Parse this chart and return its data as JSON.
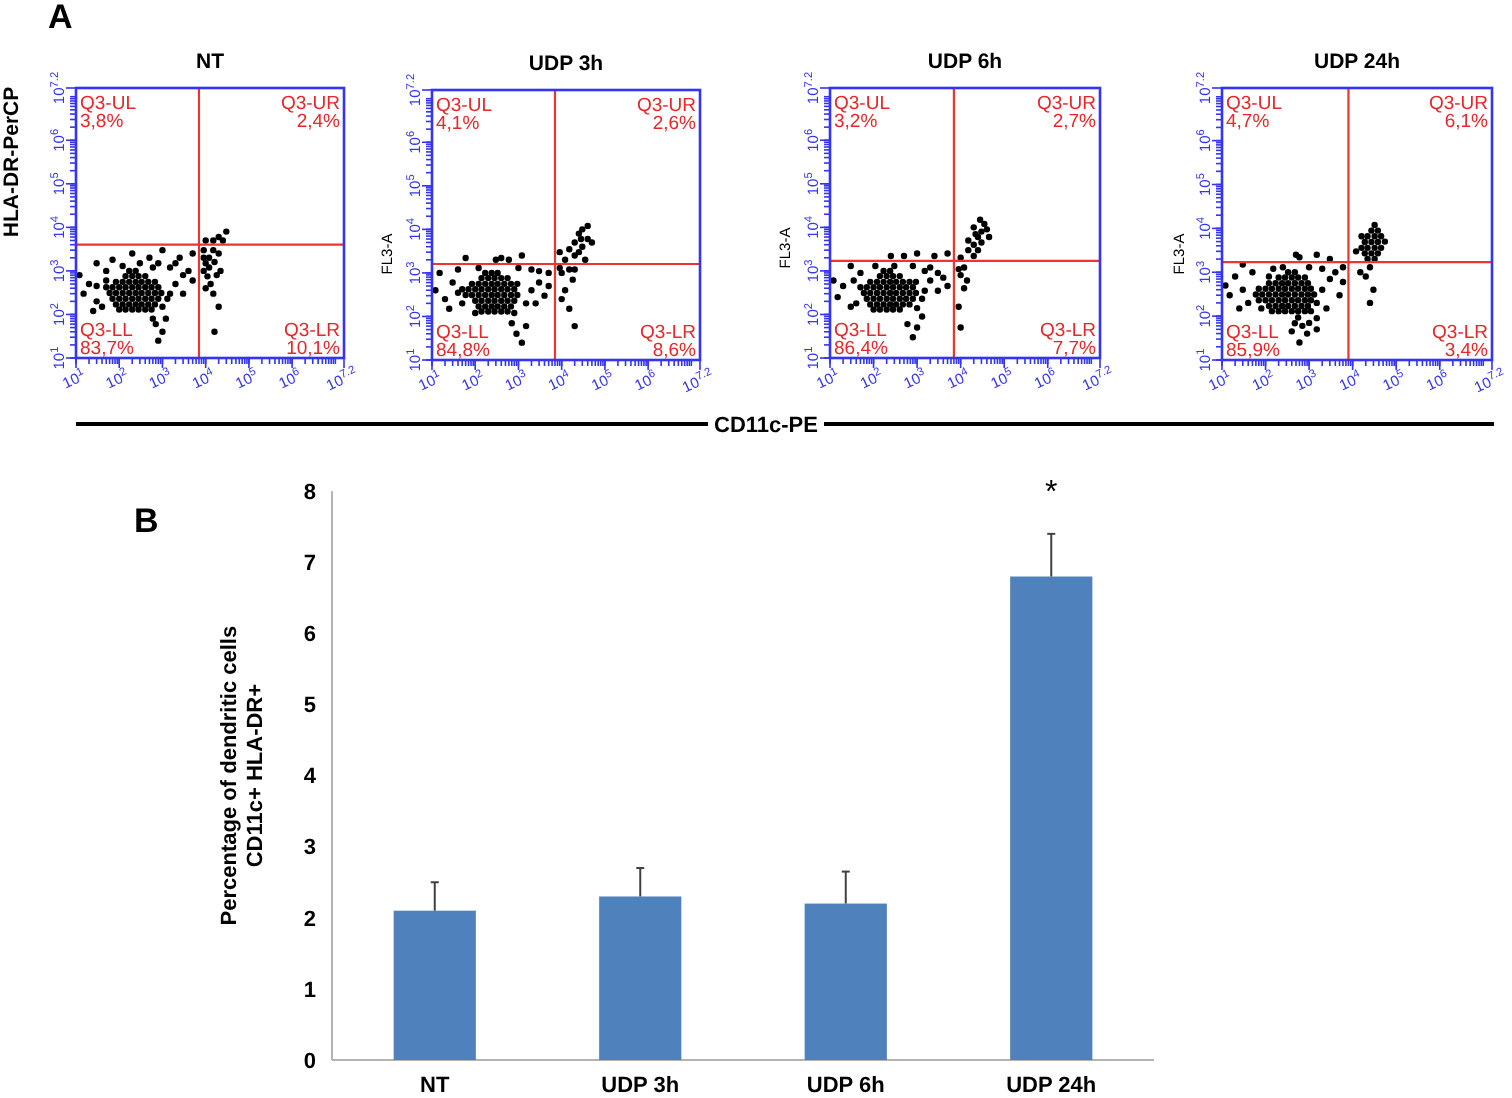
{
  "chart_data": [
    {
      "type": "scatter",
      "title": "NT",
      "ylabel": "HLA-DR-PerCP",
      "log": "xy",
      "xlim": [
        10,
        15848932
      ],
      "ylim": [
        10,
        15848932
      ],
      "xticks": [
        {
          "value": 10,
          "label": "10$^{1}$"
        },
        {
          "value": 100,
          "label": "10$^{2}$"
        },
        {
          "value": 1000,
          "label": "10$^{3}$"
        },
        {
          "value": 10000,
          "label": "10$^{4}$"
        },
        {
          "value": 100000,
          "label": "10$^{5}$"
        },
        {
          "value": 1000000,
          "label": "10$^{6}$"
        },
        {
          "value": 15848932,
          "label": "10$^{7.2}$"
        }
      ],
      "yticks": [
        {
          "value": 10,
          "label": "10$^{1}$"
        },
        {
          "value": 100,
          "label": "10$^{2}$"
        },
        {
          "value": 1000,
          "label": "10$^{3}$"
        },
        {
          "value": 10000,
          "label": "10$^{4}$"
        },
        {
          "value": 100000,
          "label": "10$^{5}$"
        },
        {
          "value": 1000000,
          "label": "10$^{6}$"
        },
        {
          "value": 15848932,
          "label": "10$^{7.2}$"
        }
      ],
      "color": "#000000",
      "x": [
        100,
        140,
        200,
        280,
        400,
        560,
        84,
        120,
        170,
        240,
        330,
        470,
        670,
        70,
        100,
        140,
        200,
        280,
        400,
        560,
        800,
        60,
        84,
        120,
        170,
        240,
        330,
        470,
        670,
        940,
        50,
        70,
        100,
        140,
        200,
        280,
        400,
        560,
        800,
        84,
        120,
        170,
        240,
        330,
        470,
        670,
        140,
        200,
        280,
        400,
        170,
        240,
        12,
        15,
        20,
        30,
        40,
        50,
        30,
        25,
        700,
        1000,
        800,
        600,
        1200,
        1000,
        1300,
        1500,
        2000,
        3000,
        800,
        1500,
        2500,
        500,
        1000,
        300,
        2000,
        4000,
        5000,
        120,
        3000,
        600,
        200,
        5000,
        70,
        50,
        30,
        9000,
        10000,
        12000,
        15000,
        11000,
        9000,
        20000,
        12000,
        15000,
        20000,
        25000,
        10000,
        9000,
        30000,
        13000,
        15000,
        20000,
        10000,
        18000,
        16000,
        16000,
        22000
      ],
      "values": [
        130,
        130,
        130,
        130,
        130,
        130,
        170,
        170,
        170,
        170,
        170,
        170,
        170,
        230,
        230,
        230,
        230,
        230,
        230,
        230,
        230,
        310,
        310,
        310,
        310,
        310,
        310,
        310,
        310,
        310,
        420,
        420,
        420,
        420,
        420,
        420,
        420,
        420,
        420,
        560,
        560,
        560,
        560,
        560,
        560,
        560,
        760,
        760,
        760,
        760,
        1000,
        1000,
        800,
        300,
        500,
        1500,
        150,
        1000,
        200,
        120,
        60,
        40,
        25,
        80,
        80,
        150,
        230,
        300,
        500,
        800,
        1500,
        1200,
        2000,
        2000,
        3000,
        1500,
        1500,
        1000,
        2500,
        1300,
        300,
        1200,
        2500,
        600,
        1800,
        600,
        450,
        1000,
        1500,
        2000,
        3000,
        750,
        2000,
        2500,
        1200,
        5000,
        6000,
        5000,
        5000,
        3000,
        8000,
        500,
        300,
        150,
        400,
        800,
        40,
        1600,
        1000
      ],
      "ref_lines": [
        {
          "axis": "x",
          "value": 7000,
          "color": "#ee3333"
        },
        {
          "axis": "y",
          "value": 4000,
          "color": "#ee3333"
        }
      ],
      "annotations": [
        "A",
        "Q3-UL\n3,8%",
        "Q3-UR\n2,4%",
        "Q3-LL\n83,7%",
        "Q3-LR\n10,1%"
      ]
    },
    {
      "type": "scatter",
      "title": "UDP 3h",
      "ylabel": "FL3-A",
      "log": "xy",
      "xlim": [
        10,
        15848932
      ],
      "ylim": [
        10,
        15848932
      ],
      "xticks": [
        {
          "value": 10,
          "label": "10$^{1}$"
        },
        {
          "value": 100,
          "label": "10$^{2}$"
        },
        {
          "value": 1000,
          "label": "10$^{3}$"
        },
        {
          "value": 10000,
          "label": "10$^{4}$"
        },
        {
          "value": 100000,
          "label": "10$^{5}$"
        },
        {
          "value": 1000000,
          "label": "10$^{6}$"
        },
        {
          "value": 15848932,
          "label": "10$^{7.2}$"
        }
      ],
      "yticks": [
        {
          "value": 10,
          "label": "10$^{1}$"
        },
        {
          "value": 100,
          "label": "10$^{2}$"
        },
        {
          "value": 1000,
          "label": "10$^{3}$"
        },
        {
          "value": 10000,
          "label": "10$^{4}$"
        },
        {
          "value": 100000,
          "label": "10$^{5}$"
        },
        {
          "value": 1000000,
          "label": "10$^{6}$"
        },
        {
          "value": 15848932,
          "label": "10$^{7.2}$"
        }
      ],
      "color": "#000000",
      "x": [
        140,
        200,
        280,
        400,
        560,
        120,
        170,
        240,
        330,
        470,
        670,
        100,
        140,
        200,
        280,
        400,
        560,
        800,
        60,
        84,
        120,
        170,
        240,
        330,
        470,
        670,
        940,
        50,
        70,
        100,
        140,
        200,
        280,
        400,
        560,
        800,
        84,
        120,
        170,
        240,
        330,
        470,
        670,
        940,
        140,
        200,
        280,
        400,
        560,
        170,
        240,
        330,
        12,
        15,
        20,
        30,
        40,
        50,
        25,
        60,
        700,
        900,
        1200,
        1500,
        800,
        1500,
        2000,
        3000,
        4000,
        1000,
        2000,
        600,
        1200,
        300,
        5000,
        3000,
        120,
        2500,
        5000,
        100,
        40,
        400,
        10000,
        15000,
        20000,
        25000,
        30000,
        20000,
        25000,
        30000,
        40000,
        15000,
        12000,
        35000,
        20000,
        40000,
        18000,
        12000,
        15000,
        20000,
        10000,
        9000,
        50000,
        28000,
        9000
      ],
      "values": [
        130,
        130,
        130,
        130,
        130,
        170,
        170,
        170,
        170,
        170,
        170,
        230,
        230,
        230,
        230,
        230,
        230,
        230,
        310,
        310,
        310,
        310,
        310,
        310,
        310,
        310,
        310,
        420,
        420,
        420,
        420,
        420,
        420,
        420,
        420,
        420,
        560,
        560,
        560,
        560,
        560,
        560,
        560,
        560,
        760,
        760,
        760,
        760,
        760,
        1000,
        1000,
        1000,
        400,
        1000,
        250,
        600,
        1200,
        200,
        150,
        2200,
        70,
        40,
        25,
        60,
        120,
        200,
        400,
        600,
        300,
        1300,
        1200,
        2000,
        2500,
        2000,
        1000,
        1100,
        1300,
        200,
        500,
        120,
        350,
        2200,
        1000,
        1200,
        2500,
        3000,
        4000,
        5000,
        8000,
        10000,
        6000,
        3500,
        2000,
        2000,
        1200,
        12000,
        700,
        400,
        150,
        60,
        250,
        1300,
        5000,
        6000,
        3000
      ],
      "ref_lines": [
        {
          "axis": "x",
          "value": 7000,
          "color": "#ee3333"
        },
        {
          "axis": "y",
          "value": 1600,
          "color": "#ee3333"
        }
      ],
      "annotations": [
        "Q3-UL\n4,1%",
        "Q3-UR\n2,6%",
        "Q3-LL\n84,8%",
        "Q3-LR\n8,6%"
      ]
    },
    {
      "type": "scatter",
      "title": "UDP 6h",
      "ylabel": "FL3-A",
      "log": "xy",
      "xlim": [
        10,
        15848932
      ],
      "ylim": [
        10,
        15848932
      ],
      "xticks": [
        {
          "value": 10,
          "label": "10$^{1}$"
        },
        {
          "value": 100,
          "label": "10$^{2}$"
        },
        {
          "value": 1000,
          "label": "10$^{3}$"
        },
        {
          "value": 10000,
          "label": "10$^{4}$"
        },
        {
          "value": 100000,
          "label": "10$^{5}$"
        },
        {
          "value": 1000000,
          "label": "10$^{6}$"
        },
        {
          "value": 15848932,
          "label": "10$^{7.2}$"
        }
      ],
      "yticks": [
        {
          "value": 10,
          "label": "10$^{1}$"
        },
        {
          "value": 100,
          "label": "10$^{2}$"
        },
        {
          "value": 1000,
          "label": "10$^{3}$"
        },
        {
          "value": 10000,
          "label": "10$^{4}$"
        },
        {
          "value": 100000,
          "label": "10$^{5}$"
        },
        {
          "value": 1000000,
          "label": "10$^{6}$"
        },
        {
          "value": 15848932,
          "label": "10$^{7.2}$"
        }
      ],
      "color": "#000000",
      "x": [
        100,
        140,
        200,
        280,
        400,
        84,
        120,
        170,
        240,
        330,
        470,
        670,
        70,
        100,
        140,
        200,
        280,
        400,
        560,
        800,
        60,
        84,
        120,
        170,
        240,
        330,
        470,
        670,
        940,
        50,
        70,
        100,
        140,
        200,
        280,
        400,
        560,
        800,
        84,
        120,
        170,
        240,
        330,
        470,
        670,
        940,
        140,
        200,
        280,
        400,
        170,
        240,
        12,
        15,
        20,
        30,
        40,
        50,
        30,
        35,
        600,
        1000,
        800,
        1300,
        1000,
        1300,
        1500,
        2000,
        3000,
        800,
        1500,
        2500,
        500,
        1000,
        300,
        2000,
        4000,
        5000,
        110,
        3000,
        250,
        5000,
        10000,
        15000,
        20000,
        25000,
        30000,
        20000,
        35000,
        25000,
        15000,
        40000,
        12000,
        30000,
        20000,
        22000,
        10000,
        12000,
        9000,
        10000,
        14000,
        28000,
        45000,
        9000
      ],
      "values": [
        130,
        130,
        130,
        130,
        130,
        170,
        170,
        170,
        170,
        170,
        170,
        170,
        230,
        230,
        230,
        230,
        230,
        230,
        230,
        230,
        310,
        310,
        310,
        310,
        310,
        310,
        310,
        310,
        310,
        420,
        420,
        420,
        420,
        420,
        420,
        420,
        420,
        420,
        560,
        560,
        560,
        560,
        560,
        560,
        560,
        560,
        760,
        760,
        760,
        760,
        1000,
        1000,
        600,
        250,
        450,
        1300,
        180,
        900,
        150,
        600,
        60,
        50,
        30,
        90,
        140,
        230,
        350,
        600,
        900,
        1300,
        1000,
        2200,
        2200,
        2500,
        1300,
        1200,
        700,
        2500,
        1300,
        350,
        2200,
        450,
        2000,
        3000,
        4000,
        6000,
        8000,
        10000,
        12000,
        3000,
        5000,
        9000,
        1200,
        4500,
        2200,
        7000,
        800,
        400,
        150,
        50,
        600,
        15000,
        6000,
        1100
      ],
      "ref_lines": [
        {
          "axis": "x",
          "value": 7000,
          "color": "#ee3333"
        },
        {
          "axis": "y",
          "value": 1700,
          "color": "#ee3333"
        }
      ],
      "annotations": [
        "CD11c-PE",
        "Q3-UL\n3,2%",
        "Q3-UR\n2,7%",
        "Q3-LL\n86,4%",
        "Q3-LR\n7,7%"
      ]
    },
    {
      "type": "scatter",
      "title": "UDP 24h",
      "ylabel": "FL3-A",
      "log": "xy",
      "xlim": [
        10,
        15848932
      ],
      "ylim": [
        10,
        15848932
      ],
      "xticks": [
        {
          "value": 10,
          "label": "10$^{1}$"
        },
        {
          "value": 100,
          "label": "10$^{2}$"
        },
        {
          "value": 1000,
          "label": "10$^{3}$"
        },
        {
          "value": 10000,
          "label": "10$^{4}$"
        },
        {
          "value": 100000,
          "label": "10$^{5}$"
        },
        {
          "value": 1000000,
          "label": "10$^{6}$"
        },
        {
          "value": 15848932,
          "label": "10$^{7.2}$"
        }
      ],
      "yticks": [
        {
          "value": 10,
          "label": "10$^{1}$"
        },
        {
          "value": 100,
          "label": "10$^{2}$"
        },
        {
          "value": 1000,
          "label": "10$^{3}$"
        },
        {
          "value": 10000,
          "label": "10$^{4}$"
        },
        {
          "value": 100000,
          "label": "10$^{5}$"
        },
        {
          "value": 1000000,
          "label": "10$^{6}$"
        },
        {
          "value": 15848932,
          "label": "10$^{7.2}$"
        }
      ],
      "color": "#000000",
      "x": [
        140,
        200,
        280,
        400,
        560,
        800,
        1100,
        120,
        170,
        240,
        330,
        470,
        670,
        940,
        70,
        100,
        140,
        200,
        280,
        400,
        560,
        800,
        1100,
        60,
        84,
        120,
        170,
        240,
        330,
        470,
        670,
        940,
        1300,
        70,
        100,
        140,
        200,
        280,
        400,
        560,
        800,
        1100,
        120,
        170,
        240,
        330,
        470,
        670,
        940,
        200,
        280,
        400,
        560,
        800,
        330,
        470,
        12,
        15,
        20,
        30,
        40,
        50,
        30,
        25,
        700,
        900,
        600,
        1500,
        560,
        1500,
        2000,
        3000,
        5000,
        1000,
        2000,
        600,
        1500,
        250,
        4000,
        3000,
        150,
        2500,
        6000,
        80,
        1500,
        500,
        120,
        6000,
        470,
        400,
        1000,
        22000,
        32000,
        19000,
        27000,
        38000,
        16000,
        22000,
        32000,
        45000,
        19000,
        27000,
        38000,
        16000,
        22000,
        32000,
        45000,
        27000,
        38000,
        32000,
        25000,
        20000,
        30000,
        25000,
        15000,
        12000,
        55000
      ],
      "values": [
        130,
        130,
        130,
        130,
        130,
        130,
        130,
        170,
        170,
        170,
        170,
        170,
        170,
        170,
        230,
        230,
        230,
        230,
        230,
        230,
        230,
        230,
        230,
        310,
        310,
        310,
        310,
        310,
        310,
        310,
        310,
        310,
        310,
        420,
        420,
        420,
        420,
        420,
        420,
        420,
        420,
        420,
        560,
        560,
        560,
        560,
        560,
        560,
        560,
        760,
        760,
        760,
        760,
        760,
        1000,
        1000,
        500,
        300,
        800,
        1500,
        200,
        1000,
        400,
        150,
        60,
        40,
        25,
        90,
        93,
        200,
        400,
        700,
        300,
        1300,
        1200,
        2200,
        2500,
        1300,
        1000,
        2000,
        1200,
        150,
        600,
        150,
        50,
        2500,
        800,
        1300,
        69,
        45,
        70,
        2000,
        2000,
        2700,
        2700,
        2700,
        3600,
        3600,
        3600,
        3600,
        4900,
        4900,
        4900,
        6600,
        6600,
        6600,
        6600,
        8900,
        8900,
        12000,
        1300,
        800,
        400,
        200,
        1000,
        3000,
        5000
      ],
      "ref_lines": [
        {
          "axis": "x",
          "value": 8000,
          "color": "#ee3333"
        },
        {
          "axis": "y",
          "value": 1700,
          "color": "#ee3333"
        }
      ],
      "annotations": [
        "Q3-UL\n4,7%",
        "Q3-UR\n6,1%",
        "Q3-LL\n85,9%",
        "Q3-LR\n3,4%"
      ]
    },
    {
      "type": "bar",
      "categories": [
        "NT",
        "UDP 3h",
        "UDP 6h",
        "UDP 24h"
      ],
      "values": [
        2.1,
        2.3,
        2.2,
        6.8
      ],
      "color": "#4f81bd",
      "errors": [
        [
          2.1,
          2.5
        ],
        [
          2.3,
          2.7
        ],
        [
          2.2,
          2.65
        ],
        [
          6.8,
          7.4
        ]
      ],
      "ylabel": "Percentage of dendritic cells\nCD11c+ HLA-DR+",
      "ylim": [
        0,
        8
      ],
      "yticks": [
        0,
        1,
        2,
        3,
        4,
        5,
        6,
        7,
        8
      ],
      "annotations": [
        "B",
        {
          "text": "*",
          "x": "UDP 24h",
          "y": 7.4
        }
      ]
    }
  ]
}
